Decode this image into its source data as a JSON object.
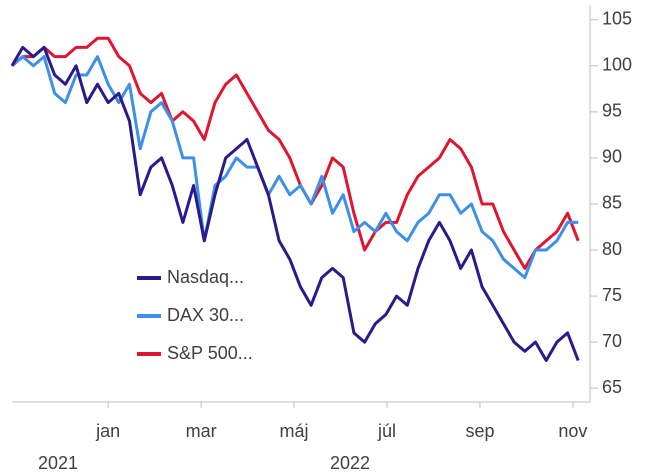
{
  "chart_data": {
    "type": "line",
    "x": [
      0,
      1,
      2,
      3,
      4,
      5,
      6,
      7,
      8,
      9,
      10,
      11,
      12,
      13,
      14,
      15,
      16,
      17,
      18,
      19,
      20,
      21,
      22,
      23,
      24,
      25,
      26,
      27,
      28,
      29,
      30,
      31,
      32,
      33,
      34,
      35,
      36,
      37,
      38,
      39,
      40,
      41,
      42,
      43,
      44,
      45,
      46,
      47,
      48,
      49,
      50,
      51,
      52,
      53
    ],
    "xlim": [
      0,
      54.1
    ],
    "xticks": [
      {
        "value": 9.0,
        "label": "jan"
      },
      {
        "value": 17.7,
        "label": "mar"
      },
      {
        "value": 26.4,
        "label": "máj"
      },
      {
        "value": 35.1,
        "label": "júl"
      },
      {
        "value": 43.8,
        "label": "sep"
      },
      {
        "value": 52.5,
        "label": "nov"
      }
    ],
    "x_group_labels": [
      "2021",
      "2022"
    ],
    "ylim": [
      63.5,
      106.6
    ],
    "yticks": [
      65,
      70,
      75,
      80,
      85,
      90,
      95,
      100,
      105
    ],
    "y_axis_side": "right",
    "legend": "lower-left",
    "series": [
      {
        "name": "Nasdaq...",
        "color": "#2a1a8c",
        "values": [
          100,
          102,
          101,
          102,
          99,
          98,
          100,
          96,
          98,
          96,
          97,
          94,
          86,
          89,
          90,
          87,
          83,
          87,
          81,
          86,
          90,
          91,
          92,
          89,
          86,
          81,
          79,
          76,
          74,
          77,
          78,
          77,
          71,
          70,
          72,
          73,
          75,
          74,
          78,
          81,
          83,
          81,
          78,
          80,
          76,
          74,
          72,
          70,
          69,
          70,
          68,
          70,
          71,
          68
        ]
      },
      {
        "name": "DAX 30...",
        "color": "#3d8fe8",
        "values": [
          100,
          101,
          100,
          101,
          97,
          96,
          99,
          99,
          101,
          98,
          96,
          98,
          91,
          95,
          96,
          94,
          90,
          90,
          81,
          87,
          88,
          90,
          89,
          89,
          86,
          88,
          86,
          87,
          85,
          88,
          84,
          86,
          82,
          83,
          82,
          84,
          82,
          81,
          83,
          84,
          86,
          86,
          84,
          85,
          82,
          81,
          79,
          78,
          77,
          80,
          80,
          81,
          83,
          83
        ]
      },
      {
        "name": "S&P 500...",
        "color": "#e01530",
        "values": [
          100,
          101,
          101,
          102,
          101,
          101,
          102,
          102,
          103,
          103,
          101,
          100,
          97,
          96,
          97,
          94,
          95,
          94,
          92,
          96,
          98,
          99,
          97,
          95,
          93,
          92,
          90,
          87,
          85,
          87,
          90,
          89,
          84,
          80,
          82,
          83,
          83,
          86,
          88,
          89,
          90,
          92,
          91,
          89,
          85,
          85,
          82,
          80,
          78,
          80,
          81,
          82,
          84,
          81
        ]
      }
    ]
  }
}
